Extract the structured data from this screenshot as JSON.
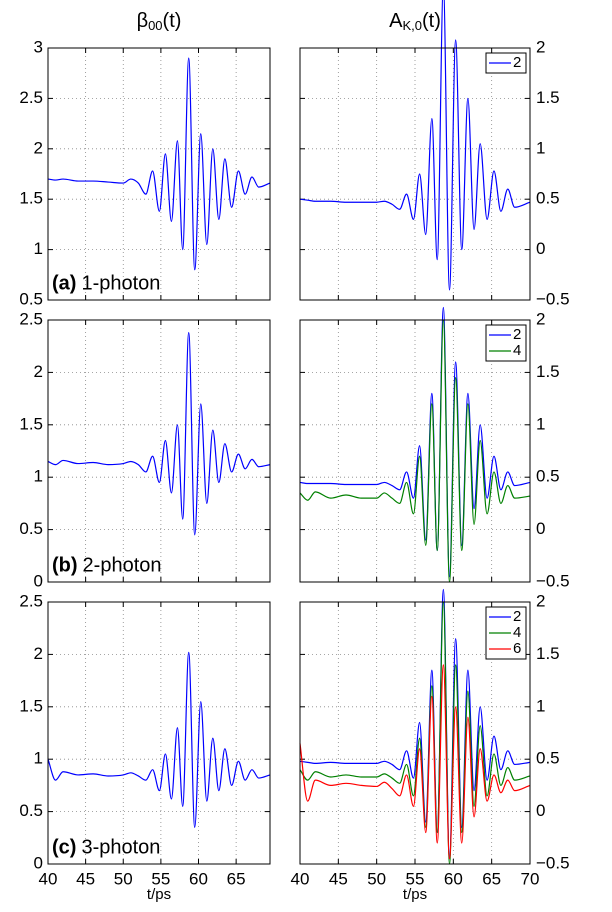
{
  "chart_data": [
    {
      "type": "line",
      "title": {
        "text": "β",
        "sub": "00",
        "after": "(t)"
      },
      "panel_label": "(a)",
      "annotation": "1-photon",
      "x": [
        40,
        41,
        42,
        44,
        46,
        48,
        50,
        51,
        52,
        53,
        53.9,
        54.8,
        55.6,
        56.4,
        57.2,
        57.9,
        58.7,
        59.5,
        60.3,
        61.1,
        61.9,
        62.7,
        63.5,
        64.4,
        65.3,
        66.2,
        67.1,
        68,
        69.5
      ],
      "series": [
        {
          "name": "β00",
          "color": "#0000ff",
          "values": [
            1.7,
            1.69,
            1.7,
            1.68,
            1.68,
            1.67,
            1.66,
            1.7,
            1.66,
            1.55,
            1.78,
            1.38,
            1.95,
            1.28,
            2.08,
            1.0,
            2.9,
            0.8,
            2.15,
            1.05,
            2.0,
            1.3,
            1.9,
            1.42,
            1.78,
            1.55,
            1.72,
            1.62,
            1.66
          ]
        }
      ],
      "xlim": [
        40,
        69.5
      ],
      "ylim": [
        0.5,
        3
      ],
      "xticks": [
        40,
        45,
        50,
        55,
        60,
        65
      ],
      "yticks": [
        0.5,
        1,
        1.5,
        2,
        2.5,
        3
      ],
      "grid": true,
      "yaxis_side": "left",
      "show_xtick_labels": false
    },
    {
      "type": "line",
      "title": {
        "text": "A",
        "sub": "K,0",
        "after": "(t)"
      },
      "x": [
        40,
        41,
        42,
        44,
        46,
        48,
        50,
        51,
        52,
        53,
        53.9,
        54.8,
        55.6,
        56.4,
        57.2,
        57.9,
        58.7,
        59.5,
        60.3,
        61.1,
        61.9,
        62.7,
        63.5,
        64.4,
        65.3,
        66.2,
        67.1,
        68,
        70
      ],
      "series": [
        {
          "name": "2",
          "color": "#0000ff",
          "values": [
            0.5,
            0.49,
            0.48,
            0.48,
            0.47,
            0.47,
            0.47,
            0.48,
            0.45,
            0.4,
            0.55,
            0.3,
            0.75,
            0.15,
            1.3,
            -0.1,
            2.62,
            -0.4,
            2.08,
            0.0,
            1.5,
            0.2,
            1.05,
            0.3,
            0.78,
            0.38,
            0.6,
            0.42,
            0.47
          ]
        }
      ],
      "xlim": [
        40,
        70
      ],
      "ylim": [
        -0.5,
        2
      ],
      "xticks": [
        40,
        45,
        50,
        55,
        60,
        65,
        70
      ],
      "yticks": [
        {
          "value": -0.5,
          "label": "−0.5"
        },
        0,
        0.5,
        1,
        1.5,
        2
      ],
      "grid": true,
      "yaxis_side": "right",
      "legend": "upper right",
      "show_xtick_labels": false
    },
    {
      "type": "line",
      "panel_label": "(b)",
      "annotation": "2-photon",
      "x": [
        40,
        41,
        42,
        44,
        46,
        48,
        50,
        51,
        52,
        53,
        53.9,
        54.8,
        55.6,
        56.4,
        57.2,
        57.9,
        58.7,
        59.5,
        60.3,
        61.1,
        61.9,
        62.7,
        63.5,
        64.4,
        65.3,
        66.2,
        67.1,
        68,
        69.5
      ],
      "series": [
        {
          "name": "β00",
          "color": "#0000ff",
          "values": [
            1.15,
            1.12,
            1.16,
            1.13,
            1.14,
            1.12,
            1.13,
            1.15,
            1.12,
            1.05,
            1.2,
            0.95,
            1.35,
            0.85,
            1.5,
            0.6,
            2.38,
            0.45,
            1.7,
            0.75,
            1.45,
            0.95,
            1.32,
            1.05,
            1.22,
            1.08,
            1.17,
            1.1,
            1.12
          ]
        }
      ],
      "xlim": [
        40,
        69.5
      ],
      "ylim": [
        0,
        2.5
      ],
      "xticks": [
        40,
        45,
        50,
        55,
        60,
        65
      ],
      "yticks": [
        0,
        0.5,
        1,
        1.5,
        2,
        2.5
      ],
      "grid": true,
      "yaxis_side": "left",
      "show_xtick_labels": false
    },
    {
      "type": "line",
      "x": [
        40,
        41,
        42,
        44,
        46,
        48,
        50,
        51,
        52,
        53,
        53.9,
        54.8,
        55.6,
        56.4,
        57.2,
        57.9,
        58.7,
        59.5,
        60.3,
        61.1,
        61.9,
        62.7,
        63.5,
        64.4,
        65.3,
        66.2,
        67.1,
        68,
        70
      ],
      "series": [
        {
          "name": "2",
          "color": "#0000ff",
          "values": [
            0.45,
            0.44,
            0.44,
            0.44,
            0.43,
            0.43,
            0.43,
            0.45,
            0.42,
            0.38,
            0.55,
            0.3,
            0.8,
            -0.1,
            1.3,
            -0.2,
            2.12,
            -0.45,
            1.6,
            -0.15,
            1.3,
            0.2,
            1.0,
            0.3,
            0.7,
            0.38,
            0.55,
            0.42,
            0.45
          ]
        },
        {
          "name": "4",
          "color": "#008000",
          "values": [
            0.35,
            0.28,
            0.36,
            0.3,
            0.33,
            0.3,
            0.3,
            0.35,
            0.3,
            0.25,
            0.45,
            0.15,
            0.7,
            -0.15,
            1.2,
            -0.2,
            2.0,
            -0.5,
            1.45,
            -0.2,
            1.2,
            0.05,
            0.85,
            0.15,
            0.55,
            0.25,
            0.42,
            0.3,
            0.32
          ]
        }
      ],
      "xlim": [
        40,
        70
      ],
      "ylim": [
        -0.5,
        2
      ],
      "xticks": [
        40,
        45,
        50,
        55,
        60,
        65,
        70
      ],
      "yticks": [
        {
          "value": -0.5,
          "label": "−0.5"
        },
        0,
        0.5,
        1,
        1.5,
        2
      ],
      "grid": true,
      "yaxis_side": "right",
      "legend": "upper right",
      "show_xtick_labels": false
    },
    {
      "type": "line",
      "panel_label": "(c)",
      "annotation": "3-photon",
      "xlabel": "t/ps",
      "x": [
        40,
        41,
        42,
        44,
        46,
        48,
        50,
        51,
        52,
        53,
        53.9,
        54.8,
        55.6,
        56.4,
        57.2,
        57.9,
        58.7,
        59.5,
        60.3,
        61.1,
        61.9,
        62.7,
        63.5,
        64.4,
        65.3,
        66.2,
        67.1,
        68,
        69.5
      ],
      "series": [
        {
          "name": "β00",
          "color": "#0000ff",
          "values": [
            1.0,
            0.8,
            0.88,
            0.85,
            0.86,
            0.84,
            0.85,
            0.87,
            0.84,
            0.8,
            0.9,
            0.7,
            1.05,
            0.62,
            1.3,
            0.55,
            2.02,
            0.35,
            1.55,
            0.6,
            1.2,
            0.7,
            1.1,
            0.75,
            0.98,
            0.8,
            0.9,
            0.82,
            0.85
          ]
        }
      ],
      "xlim": [
        40,
        69.5
      ],
      "ylim": [
        0,
        2.5
      ],
      "xticks": [
        40,
        45,
        50,
        55,
        60,
        65
      ],
      "yticks": [
        0,
        0.5,
        1,
        1.5,
        2,
        2.5
      ],
      "grid": true,
      "yaxis_side": "left",
      "show_xtick_labels": true
    },
    {
      "type": "line",
      "xlabel": "t/ps",
      "x": [
        40,
        41,
        42,
        44,
        46,
        48,
        50,
        51,
        52,
        53,
        53.9,
        54.8,
        55.6,
        56.4,
        57.2,
        57.9,
        58.7,
        59.5,
        60.3,
        61.1,
        61.9,
        62.7,
        63.5,
        64.4,
        65.3,
        66.2,
        67.1,
        68,
        70
      ],
      "series": [
        {
          "name": "2",
          "color": "#0000ff",
          "values": [
            0.48,
            0.47,
            0.46,
            0.47,
            0.46,
            0.46,
            0.46,
            0.48,
            0.45,
            0.4,
            0.58,
            0.32,
            0.85,
            -0.1,
            1.35,
            -0.2,
            2.12,
            -0.45,
            1.65,
            -0.15,
            1.35,
            0.2,
            1.0,
            0.3,
            0.72,
            0.4,
            0.58,
            0.45,
            0.47
          ]
        },
        {
          "name": "4",
          "color": "#008000",
          "values": [
            0.4,
            0.3,
            0.38,
            0.33,
            0.35,
            0.33,
            0.33,
            0.36,
            0.32,
            0.27,
            0.45,
            0.15,
            0.7,
            -0.15,
            1.2,
            -0.2,
            2.0,
            -0.5,
            1.4,
            -0.2,
            1.15,
            0.05,
            0.82,
            0.15,
            0.55,
            0.25,
            0.42,
            0.3,
            0.34
          ]
        },
        {
          "name": "6",
          "color": "#ff0000",
          "values": [
            0.65,
            0.1,
            0.3,
            0.25,
            0.27,
            0.25,
            0.24,
            0.28,
            0.22,
            0.15,
            0.35,
            0.05,
            0.6,
            -0.2,
            1.1,
            -0.3,
            1.4,
            -0.45,
            1.0,
            -0.3,
            0.9,
            -0.05,
            0.6,
            0.1,
            0.35,
            0.18,
            0.3,
            0.2,
            0.25
          ]
        }
      ],
      "xlim": [
        40,
        70
      ],
      "ylim": [
        -0.5,
        2
      ],
      "xticks": [
        40,
        45,
        50,
        55,
        60,
        65,
        70
      ],
      "yticks": [
        {
          "value": -0.5,
          "label": "−0.5"
        },
        0,
        0.5,
        1,
        1.5,
        2
      ],
      "grid": true,
      "yaxis_side": "right",
      "legend": "upper right",
      "show_xtick_labels": true
    }
  ]
}
